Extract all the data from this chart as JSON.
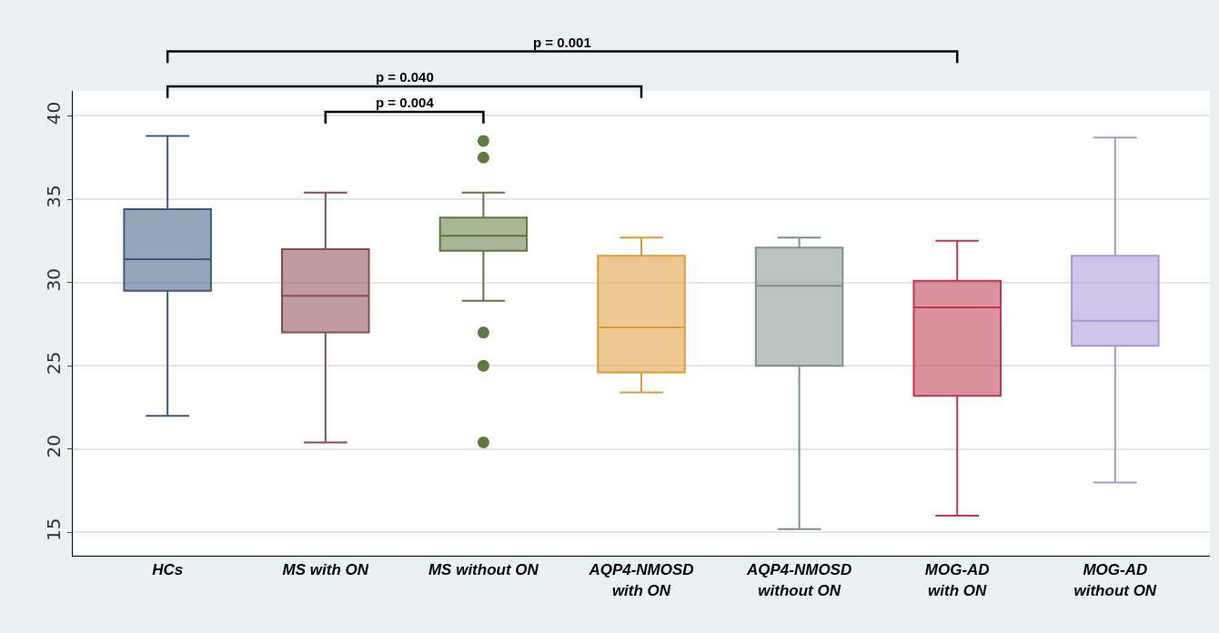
{
  "chart_data": {
    "type": "box",
    "categories": [
      "HCs",
      "MS with ON",
      "MS without ON",
      "AQP4-NMOSD\nwith ON",
      "AQP4-NMOSD\nwithout ON",
      "MOG-AD\nwith ON",
      "MOG-AD\nwithout ON"
    ],
    "boxes": [
      {
        "low": 22.0,
        "q1": 29.5,
        "median": 31.4,
        "q3": 34.4,
        "high": 38.8
      },
      {
        "low": 20.4,
        "q1": 27.0,
        "median": 29.2,
        "q3": 32.0,
        "high": 35.4
      },
      {
        "low": 28.9,
        "q1": 31.9,
        "median": 32.8,
        "q3": 33.9,
        "high": 35.4,
        "outliers": [
          38.5,
          37.5,
          27.0,
          25.0,
          20.4
        ]
      },
      {
        "low": 23.4,
        "q1": 24.6,
        "median": 27.3,
        "q3": 31.6,
        "high": 32.7
      },
      {
        "low": 15.2,
        "q1": 25.0,
        "median": 29.8,
        "q3": 32.1,
        "high": 32.7
      },
      {
        "low": 16.0,
        "q1": 23.2,
        "median": 28.5,
        "q3": 30.1,
        "high": 32.5
      },
      {
        "low": 18.0,
        "q1": 26.2,
        "median": 27.7,
        "q3": 31.6,
        "high": 38.7
      }
    ],
    "colors": [
      "#3f5a7f",
      "#8c4b50",
      "#5e7a3e",
      "#e09a3a",
      "#7f918a",
      "#c0374e",
      "#a896d9"
    ],
    "ylim": [
      13.6,
      41.5
    ],
    "yticks": [
      15,
      20,
      25,
      30,
      35,
      40
    ],
    "grid": "y",
    "annotations": [
      "p = 0.004",
      "p = 0.040",
      "p = 0.001"
    ]
  }
}
